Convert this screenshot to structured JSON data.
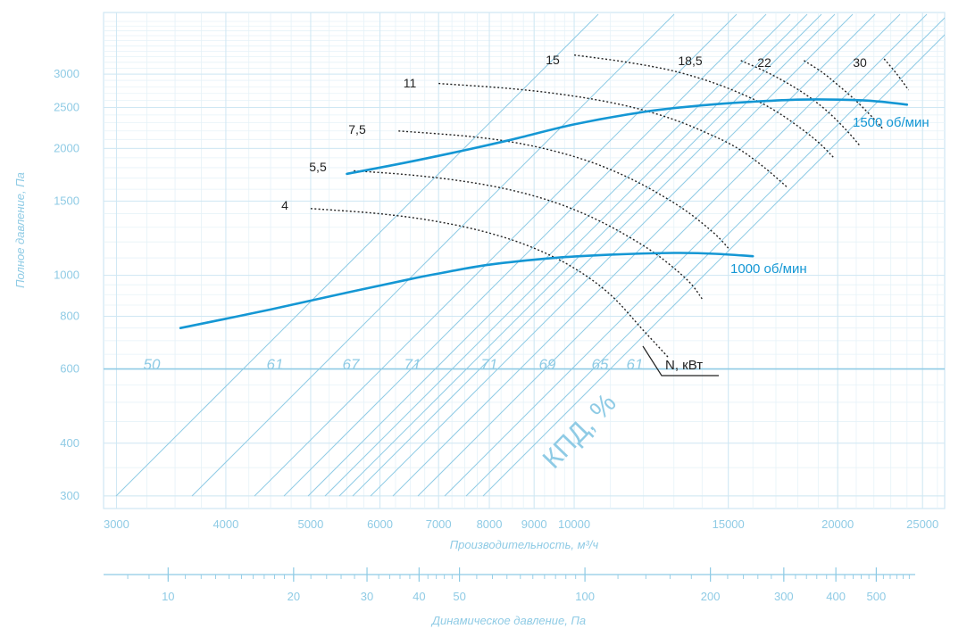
{
  "chart_data": {
    "type": "line",
    "xlabel": "Производительность, м³/ч",
    "ylabel": "Полное давление, Па",
    "x_scale": "log",
    "y_scale": "log",
    "xlim": [
      2900,
      26500
    ],
    "ylim": [
      280,
      4200
    ],
    "x_ticks": [
      3000,
      4000,
      5000,
      6000,
      7000,
      8000,
      9000,
      10000,
      15000,
      20000,
      25000
    ],
    "y_ticks": [
      300,
      400,
      600,
      800,
      1000,
      1500,
      2000,
      2500,
      3000
    ],
    "grid": true,
    "colors": {
      "grid": "#cfe7f3",
      "main": "#1497d4",
      "light": "#8fcbe5",
      "power": "#222222"
    },
    "series": [
      {
        "name": "1000 об/мин",
        "x": [
          3550,
          4500,
          5500,
          6500,
          7000,
          8000,
          9500,
          11000,
          13000,
          14500,
          16000
        ],
        "y": [
          750,
          830,
          910,
          980,
          1010,
          1060,
          1100,
          1120,
          1130,
          1125,
          1110
        ]
      },
      {
        "name": "1500 об/мин",
        "x": [
          5500,
          6500,
          7500,
          8500,
          10000,
          12000,
          14000,
          16000,
          18000,
          20000,
          22000,
          24000
        ],
        "y": [
          1740,
          1860,
          1980,
          2100,
          2280,
          2440,
          2530,
          2580,
          2610,
          2610,
          2590,
          2540
        ]
      }
    ],
    "power_curves": [
      {
        "label": "4",
        "x": [
          5000,
          6000,
          7000,
          8000,
          9000,
          10000,
          11000,
          12000,
          12800
        ],
        "y": [
          1440,
          1400,
          1340,
          1260,
          1160,
          1040,
          900,
          740,
          640
        ]
      },
      {
        "label": "5,5",
        "x": [
          5600,
          6500,
          7500,
          8500,
          9500,
          10500,
          11500,
          12500,
          13500,
          14000
        ],
        "y": [
          1770,
          1730,
          1670,
          1590,
          1490,
          1370,
          1240,
          1110,
          970,
          880
        ]
      },
      {
        "label": "7,5",
        "x": [
          6300,
          7500,
          8500,
          9500,
          10500,
          11500,
          12500,
          13500,
          14500,
          15000
        ],
        "y": [
          2200,
          2140,
          2070,
          1970,
          1850,
          1710,
          1560,
          1410,
          1250,
          1160
        ]
      },
      {
        "label": "11",
        "x": [
          7000,
          8500,
          10000,
          11500,
          13000,
          14500,
          15500,
          16500,
          17500
        ],
        "y": [
          2850,
          2770,
          2660,
          2520,
          2340,
          2130,
          1980,
          1800,
          1620
        ]
      },
      {
        "label": "15",
        "x": [
          10000,
          11500,
          13000,
          14500,
          16000,
          17000,
          18000,
          19000,
          19800
        ],
        "y": [
          3330,
          3200,
          3050,
          2850,
          2620,
          2450,
          2260,
          2070,
          1900
        ]
      },
      {
        "label": "18,5",
        "x": [
          15500,
          16500,
          17500,
          18500,
          19500,
          20500,
          21200
        ],
        "y": [
          3230,
          3050,
          2860,
          2660,
          2440,
          2200,
          2030
        ]
      },
      {
        "label": "22",
        "x": [
          18300,
          19200,
          20000,
          21000,
          22000,
          22500
        ],
        "y": [
          3230,
          3030,
          2830,
          2590,
          2350,
          2230
        ]
      },
      {
        "label": "30",
        "x": [
          22600,
          23400,
          24100
        ],
        "y": [
          3260,
          2990,
          2750
        ]
      }
    ],
    "efficiency_labels": [
      "50",
      "61",
      "67",
      "71",
      "71",
      "69",
      "65",
      "61"
    ],
    "kpd_label": "КПД, %",
    "power_axis_label": "N, кВт",
    "dynamic_axis": {
      "label": "Динамическое давление, Па",
      "ticks": [
        10,
        20,
        30,
        40,
        50,
        100,
        200,
        300,
        400,
        500
      ],
      "range": [
        7,
        620
      ]
    }
  }
}
